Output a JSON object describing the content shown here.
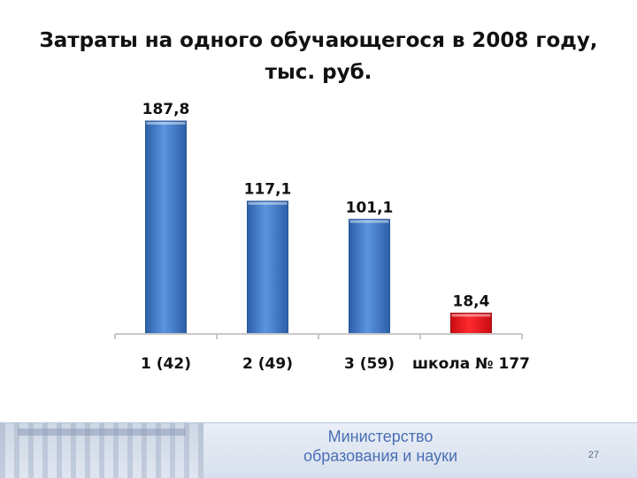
{
  "slide": {
    "title_line1": "Затраты на одного обучающегося в 2008 году,",
    "title_line2": "тыс. руб.",
    "ministry_line1": "Министерство",
    "ministry_line2": "образования и науки",
    "page_number": "27"
  },
  "colors": {
    "bar": "#3f78c9",
    "bar_highlight": "#e8141b",
    "axis": "#c8c8c8"
  },
  "chart_data": {
    "type": "bar",
    "title": "Затраты на одного обучающегося в 2008 году, тыс. руб.",
    "categories": [
      "1 (42)",
      "2 (49)",
      "3 (59)",
      "школа № 177"
    ],
    "values": [
      187.8,
      117.1,
      101.1,
      18.4
    ],
    "value_labels": [
      "187,8",
      "117,1",
      "101,1",
      "18,4"
    ],
    "highlight_index": 3,
    "ylim": [
      0,
      187.8
    ],
    "grid": false,
    "legend": "none"
  }
}
